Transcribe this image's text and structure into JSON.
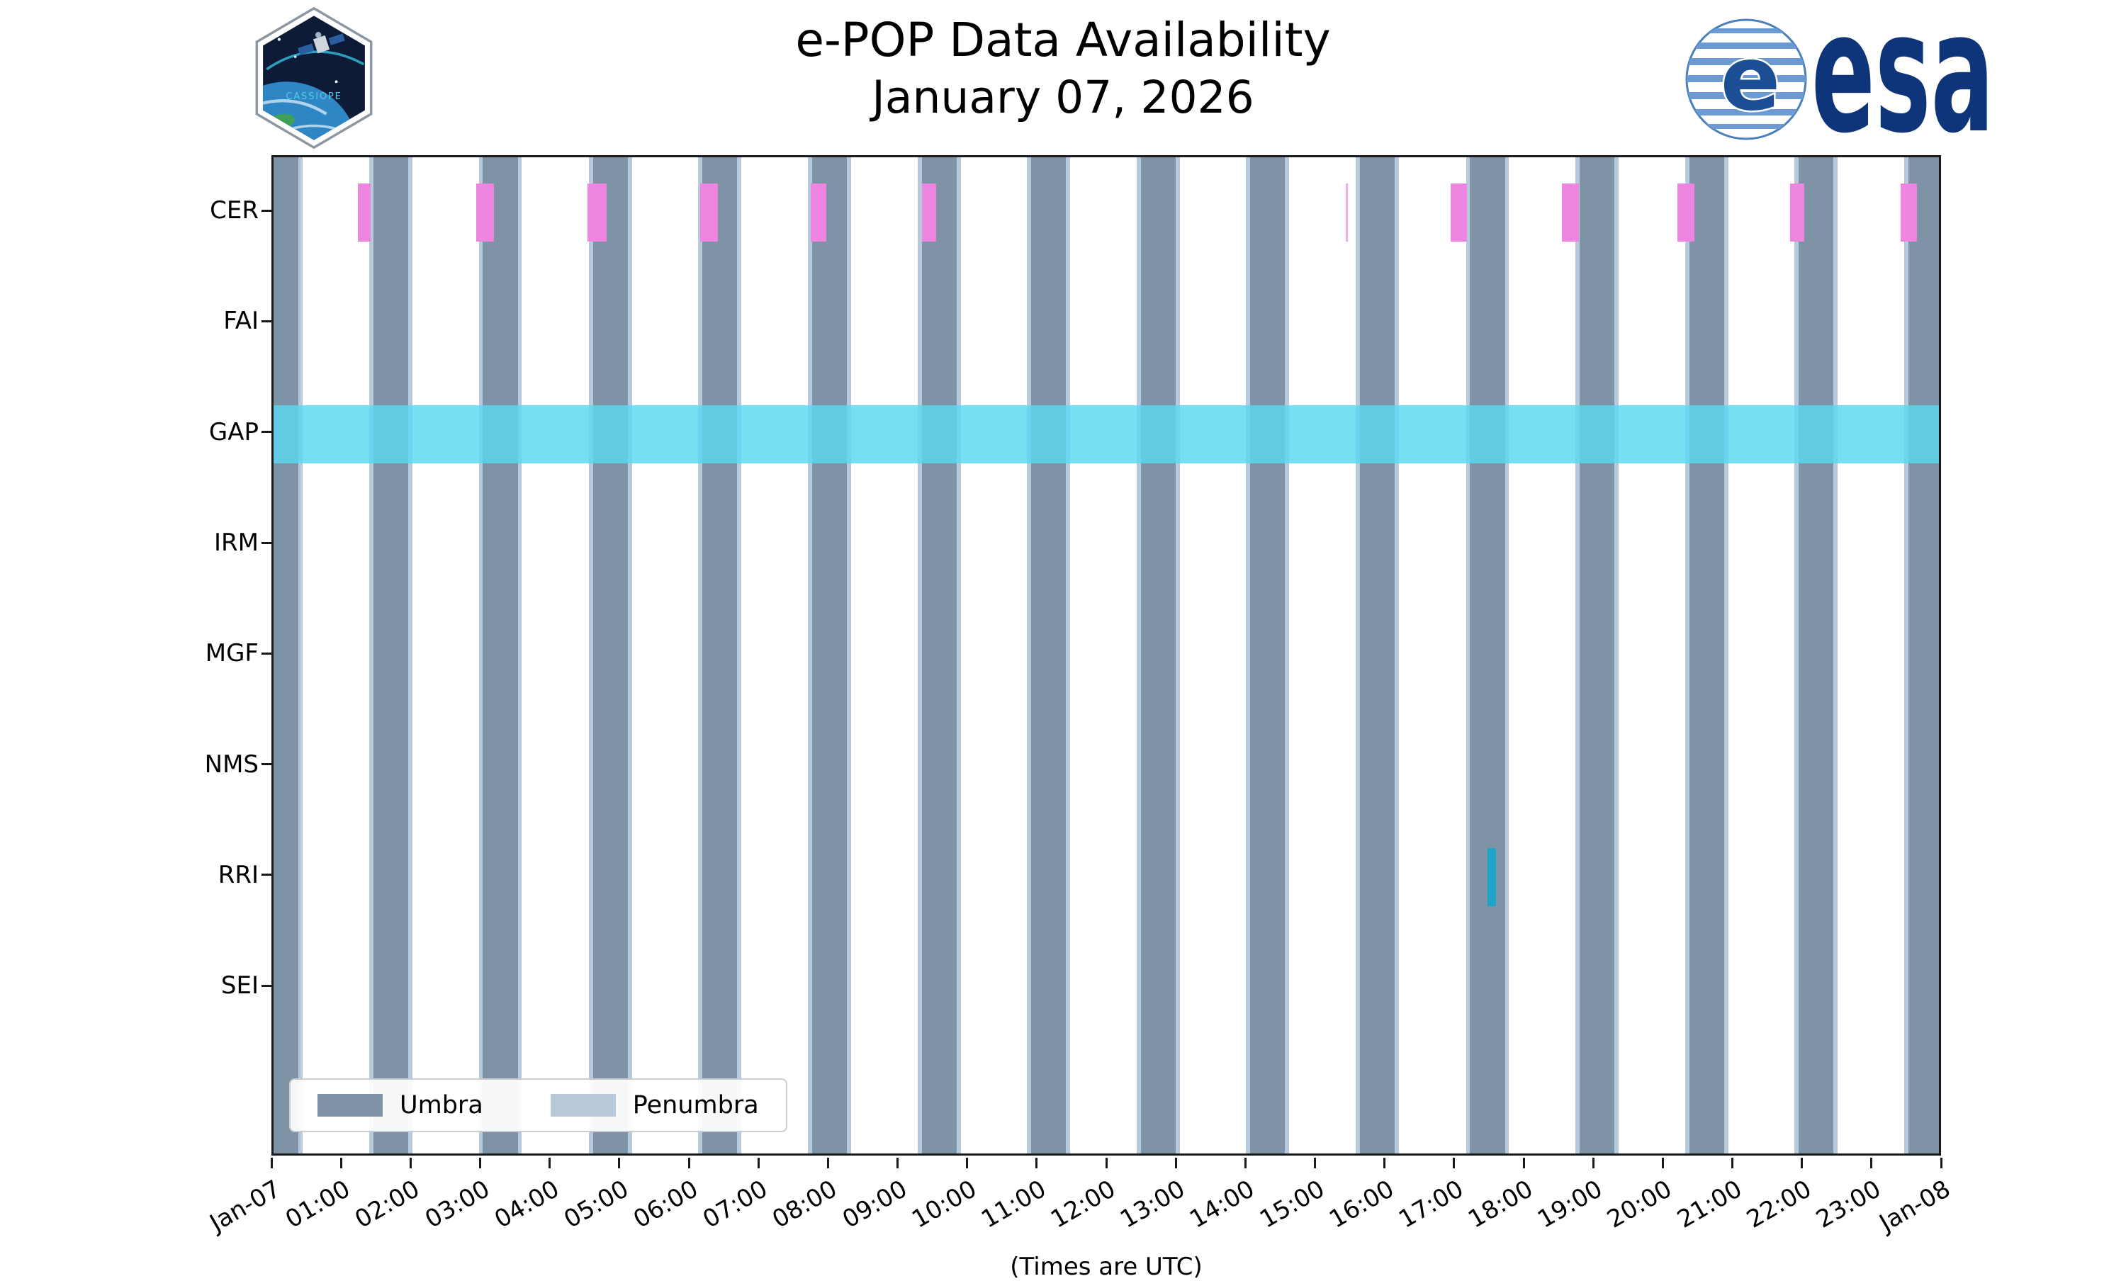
{
  "logos": {
    "cassiope": "CASSIOPE",
    "esa": "esa"
  },
  "chart_data": {
    "type": "bar",
    "subtype": "timeline-availability",
    "title": "e-POP Data Availability",
    "subtitle": "January 07, 2026",
    "xlabel": "(Times are UTC)",
    "x_range_hours": [
      0,
      24
    ],
    "x_ticks": [
      {
        "hour": 0,
        "label": "Jan-07"
      },
      {
        "hour": 1,
        "label": "01:00"
      },
      {
        "hour": 2,
        "label": "02:00"
      },
      {
        "hour": 3,
        "label": "03:00"
      },
      {
        "hour": 4,
        "label": "04:00"
      },
      {
        "hour": 5,
        "label": "05:00"
      },
      {
        "hour": 6,
        "label": "06:00"
      },
      {
        "hour": 7,
        "label": "07:00"
      },
      {
        "hour": 8,
        "label": "08:00"
      },
      {
        "hour": 9,
        "label": "09:00"
      },
      {
        "hour": 10,
        "label": "10:00"
      },
      {
        "hour": 11,
        "label": "11:00"
      },
      {
        "hour": 12,
        "label": "12:00"
      },
      {
        "hour": 13,
        "label": "13:00"
      },
      {
        "hour": 14,
        "label": "14:00"
      },
      {
        "hour": 15,
        "label": "15:00"
      },
      {
        "hour": 16,
        "label": "16:00"
      },
      {
        "hour": 17,
        "label": "17:00"
      },
      {
        "hour": 18,
        "label": "18:00"
      },
      {
        "hour": 19,
        "label": "19:00"
      },
      {
        "hour": 20,
        "label": "20:00"
      },
      {
        "hour": 21,
        "label": "21:00"
      },
      {
        "hour": 22,
        "label": "22:00"
      },
      {
        "hour": 23,
        "label": "23:00"
      },
      {
        "hour": 24,
        "label": "Jan-08"
      }
    ],
    "rows": [
      "CER",
      "FAI",
      "GAP",
      "IRM",
      "MGF",
      "NMS",
      "RRI",
      "SEI"
    ],
    "legend": [
      {
        "label": "Umbra",
        "color": "#7e93a6"
      },
      {
        "label": "Penumbra",
        "color": "#b9c9dc"
      }
    ],
    "penumbra_edge_hours": 0.06,
    "umbra_intervals": [
      [
        0.0,
        0.36
      ],
      [
        1.44,
        1.94
      ],
      [
        3.01,
        3.51
      ],
      [
        4.59,
        5.09
      ],
      [
        6.16,
        6.66
      ],
      [
        7.74,
        8.24
      ],
      [
        9.32,
        9.82
      ],
      [
        10.89,
        11.39
      ],
      [
        12.47,
        12.97
      ],
      [
        14.04,
        14.54
      ],
      [
        15.62,
        16.12
      ],
      [
        17.2,
        17.7
      ],
      [
        18.77,
        19.27
      ],
      [
        20.35,
        20.85
      ],
      [
        21.92,
        22.42
      ],
      [
        23.5,
        24.0
      ]
    ],
    "availability": [
      {
        "row": "CER",
        "start": 1.21,
        "end": 1.4,
        "color": "#ee85e0"
      },
      {
        "row": "CER",
        "start": 2.91,
        "end": 3.17,
        "color": "#ee85e0"
      },
      {
        "row": "CER",
        "start": 4.51,
        "end": 4.79,
        "color": "#ee85e0"
      },
      {
        "row": "CER",
        "start": 6.13,
        "end": 6.39,
        "color": "#ee85e0"
      },
      {
        "row": "CER",
        "start": 7.72,
        "end": 7.95,
        "color": "#ee85e0"
      },
      {
        "row": "CER",
        "start": 9.32,
        "end": 9.52,
        "color": "#ee85e0"
      },
      {
        "row": "CER",
        "start": 15.41,
        "end": 15.44,
        "color": "#f3abe8"
      },
      {
        "row": "CER",
        "start": 16.92,
        "end": 17.15,
        "color": "#ee85e0"
      },
      {
        "row": "CER",
        "start": 18.52,
        "end": 18.76,
        "color": "#ee85e0"
      },
      {
        "row": "CER",
        "start": 20.18,
        "end": 20.42,
        "color": "#ee85e0"
      },
      {
        "row": "CER",
        "start": 21.8,
        "end": 22.0,
        "color": "#ee85e0"
      },
      {
        "row": "CER",
        "start": 23.39,
        "end": 23.62,
        "color": "#ee85e0"
      },
      {
        "row": "GAP",
        "start": 0.0,
        "end": 24.0,
        "color": "#59d8ef",
        "opacity": 0.82
      },
      {
        "row": "RRI",
        "start": 17.45,
        "end": 17.57,
        "color": "#1ea4c9"
      }
    ]
  }
}
